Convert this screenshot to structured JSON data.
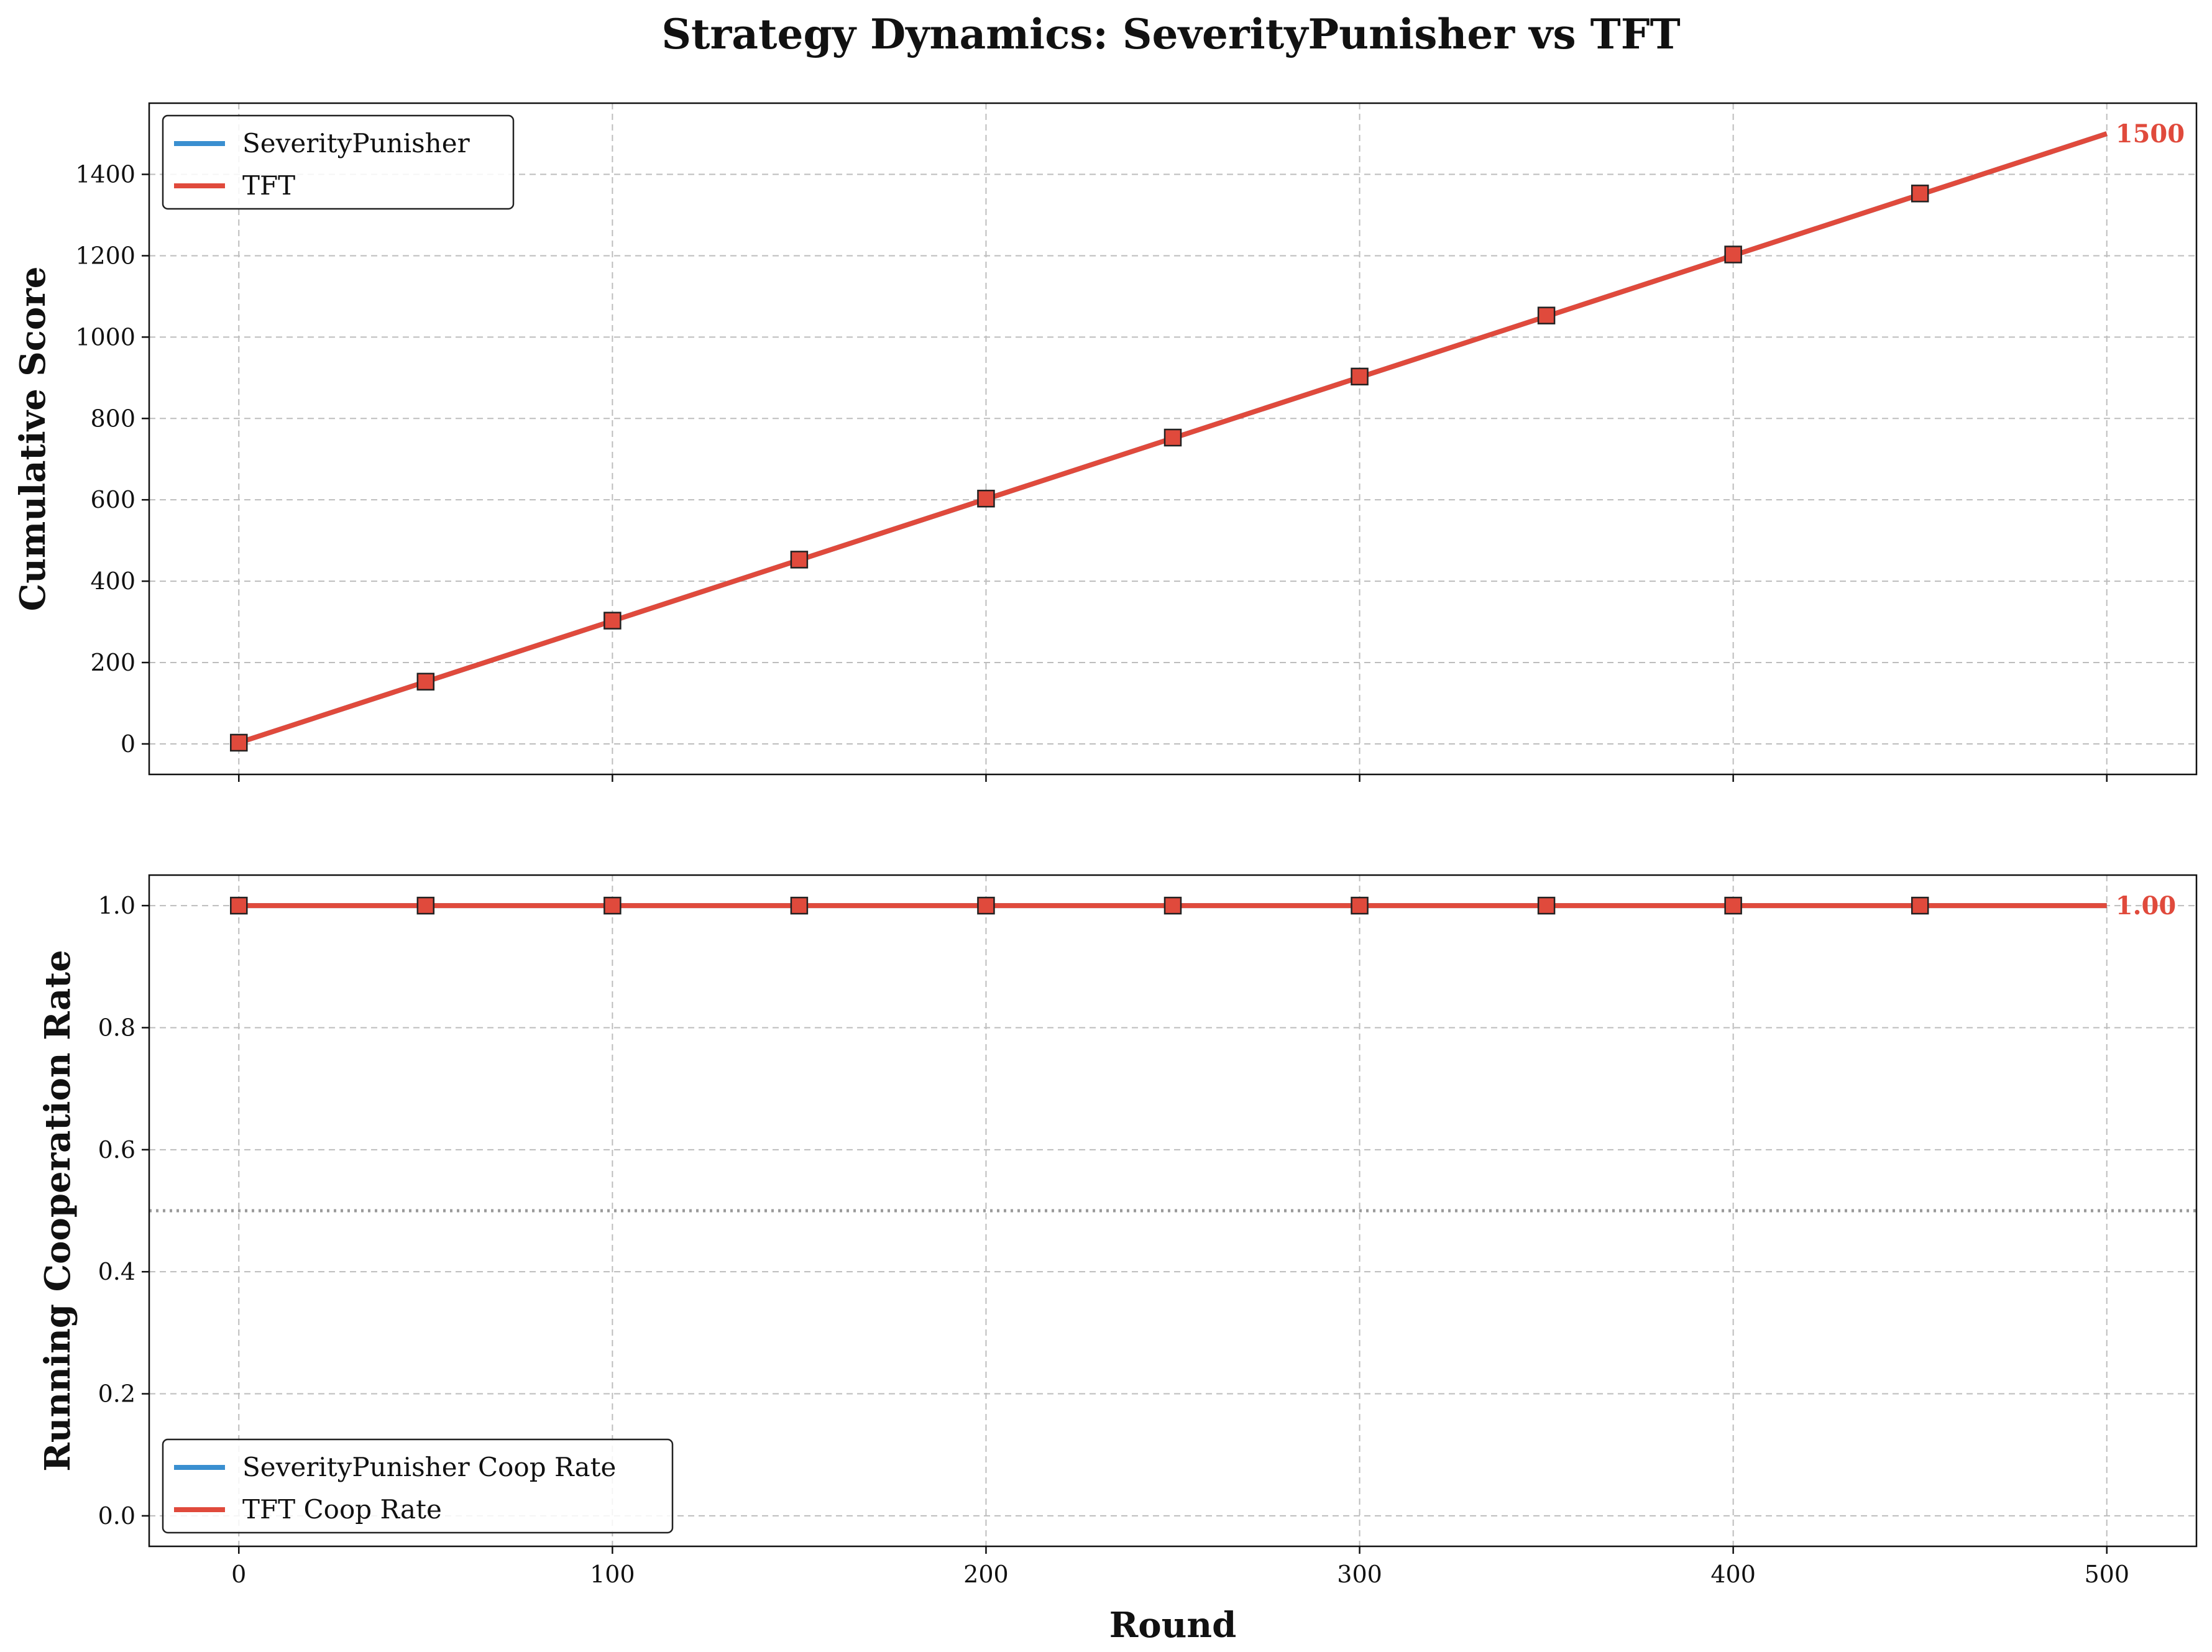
{
  "title": "Strategy Dynamics: SeverityPunisher vs TFT",
  "colors": {
    "severity": "#3a8fd0",
    "tft": "#e04a3c",
    "grid": "#bdbdbd",
    "reference": "#9a9a9a"
  },
  "chart_data": [
    {
      "type": "line",
      "ylabel": "Cumulative Score",
      "xlabel": "",
      "xlim": [
        -24,
        524
      ],
      "ylim": [
        -75,
        1575
      ],
      "x_ticks": [
        0,
        100,
        200,
        300,
        400,
        500
      ],
      "y_ticks": [
        0,
        200,
        400,
        600,
        800,
        1000,
        1200,
        1400
      ],
      "show_x_tick_labels": false,
      "grid": true,
      "legend_position": "top-left",
      "legend": [
        "SeverityPunisher",
        "TFT"
      ],
      "x": [
        0,
        500
      ],
      "series": [
        {
          "name": "SeverityPunisher",
          "color_key": "severity",
          "x": [
            0,
            500
          ],
          "values": [
            3,
            1500
          ]
        },
        {
          "name": "TFT",
          "color_key": "tft",
          "x": [
            0,
            500
          ],
          "values": [
            3,
            1500
          ]
        }
      ],
      "markers": {
        "x": [
          0,
          50,
          100,
          150,
          200,
          250,
          300,
          350,
          400,
          450
        ],
        "values": [
          3,
          153,
          303,
          453,
          603,
          753,
          903,
          1053,
          1203,
          1353
        ],
        "shape": "square"
      },
      "end_label": {
        "x": 500,
        "value": 1500,
        "text": "1500"
      }
    },
    {
      "type": "line",
      "ylabel": "Running Cooperation Rate",
      "xlabel": "Round",
      "xlim": [
        -24,
        524
      ],
      "ylim": [
        -0.05,
        1.05
      ],
      "x_ticks": [
        0,
        100,
        200,
        300,
        400,
        500
      ],
      "y_ticks": [
        0.0,
        0.2,
        0.4,
        0.6,
        0.8,
        1.0
      ],
      "y_tick_labels": [
        "0.0",
        "0.2",
        "0.4",
        "0.6",
        "0.8",
        "1.0"
      ],
      "show_x_tick_labels": true,
      "grid": true,
      "reference_line": 0.5,
      "legend_position": "bottom-left",
      "legend": [
        "SeverityPunisher Coop Rate",
        "TFT Coop Rate"
      ],
      "series": [
        {
          "name": "SeverityPunisher Coop Rate",
          "color_key": "severity",
          "x": [
            0,
            500
          ],
          "values": [
            1.0,
            1.0
          ]
        },
        {
          "name": "TFT Coop Rate",
          "color_key": "tft",
          "x": [
            0,
            500
          ],
          "values": [
            1.0,
            1.0
          ]
        }
      ],
      "markers": {
        "x": [
          0,
          50,
          100,
          150,
          200,
          250,
          300,
          350,
          400,
          450
        ],
        "values": [
          1.0,
          1.0,
          1.0,
          1.0,
          1.0,
          1.0,
          1.0,
          1.0,
          1.0,
          1.0
        ],
        "shape": "square"
      },
      "end_label": {
        "x": 500,
        "value": 1.0,
        "text": "1.00"
      }
    }
  ]
}
